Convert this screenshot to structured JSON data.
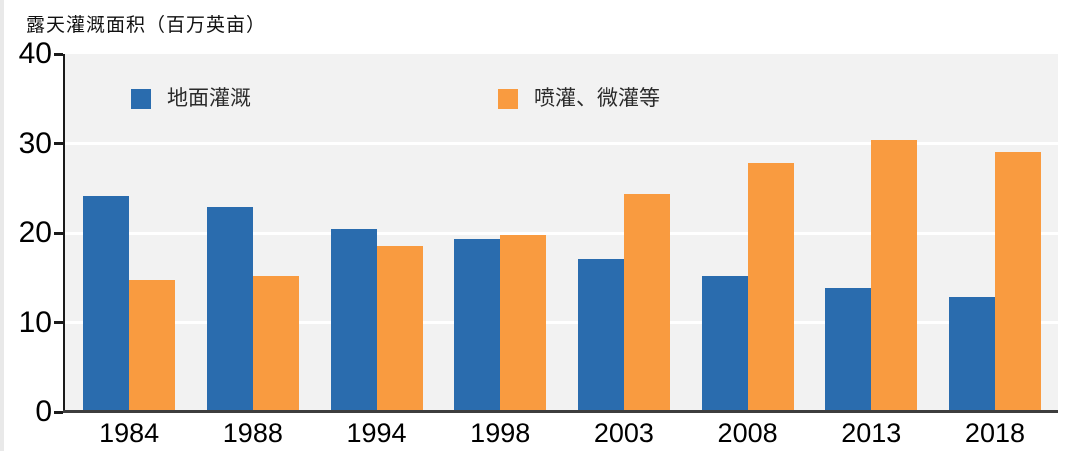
{
  "chart": {
    "title": "露天灌溉面积（百万英亩）"
  },
  "chart_data": {
    "type": "bar",
    "title": "露天灌溉面积（百万英亩）",
    "categories": [
      "1984",
      "1988",
      "1994",
      "1998",
      "2003",
      "2008",
      "2013",
      "2018"
    ],
    "series": [
      {
        "name": "地面灌溉",
        "color": "#2a6cae",
        "values": [
          23.9,
          22.7,
          20.2,
          19.1,
          16.9,
          15.0,
          13.6,
          12.6
        ]
      },
      {
        "name": "喷灌、微灌等",
        "color": "#f99b40",
        "values": [
          14.5,
          15.0,
          18.3,
          19.5,
          24.1,
          27.6,
          30.2,
          28.8
        ]
      }
    ],
    "xlabel": "",
    "ylabel": "露天灌溉面积（百万英亩）",
    "ylim": [
      0,
      40
    ],
    "yticks": [
      0,
      10,
      20,
      30,
      40
    ],
    "grid": true,
    "gridline_color": "#ffffff",
    "plot_background": "#f2f2f2",
    "axis_color": "#1a1a1a",
    "legend_position": "top-inside"
  }
}
